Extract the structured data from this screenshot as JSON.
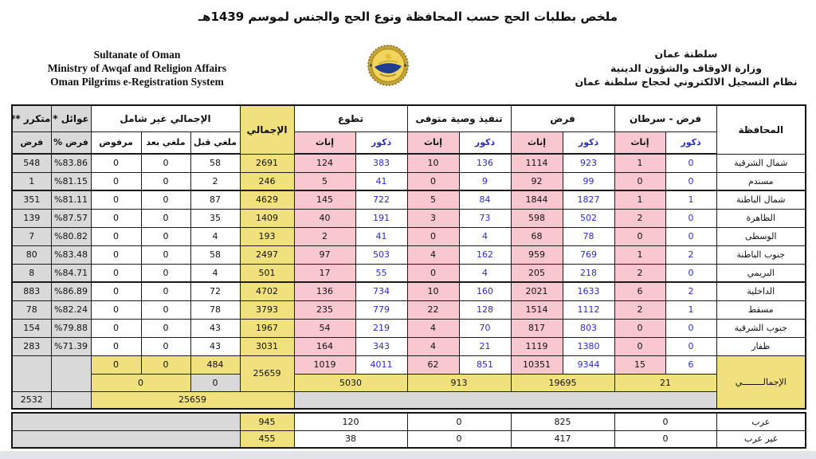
{
  "page": {
    "title": "ملخص بطلبات الحج حسب المحافظة ونوع الحج والجنس لموسم 1439هـ"
  },
  "letterhead": {
    "english": {
      "line1": "Sultanate of Oman",
      "line2": "Ministry of Awqaf and Religion Affairs",
      "line3": "Oman Pilgrims e-Registration System"
    },
    "arabic": {
      "line1": "سلطنة عمان",
      "line2": "وزارة الاوقاف والشؤون الدينية",
      "line3": "نظام التسجيل الالكتروني لحجاج سلطنة عمان"
    },
    "logo_icon": "ministry-seal-icon"
  },
  "colors": {
    "female_bg": "#f8c7d0",
    "male_text": "#2b2bc8",
    "total_bg": "#f1e17d",
    "muted_bg": "#d9d9d9",
    "border": "#1b1b1b"
  },
  "table": {
    "headers": {
      "governorate": "المحافظة",
      "groups": [
        {
          "key": "cancer",
          "label": "فرض - سرطان",
          "male": "ذكور",
          "female": "إناث"
        },
        {
          "key": "fard",
          "label": "فرض",
          "male": "ذكور",
          "female": "إناث"
        },
        {
          "key": "will",
          "label": "تنفيذ وصية متوفى",
          "male": "ذكور",
          "female": "إناث"
        },
        {
          "key": "vol",
          "label": "تطوع",
          "male": "ذكور",
          "female": "إناث"
        }
      ],
      "total": "الإجمالي",
      "excluded_group": "الإجمالي غير شامل",
      "excluded": {
        "cancel_before": "ملغي قبل",
        "cancel_after": "ملغي بعد",
        "rejected": "مرفوض"
      },
      "families": {
        "top": "عوائل *",
        "bottom": "فرض %"
      },
      "repeated": {
        "top": "متكرر **",
        "bottom": "فرض"
      }
    },
    "rows": [
      {
        "gov": "شمال الشرقية",
        "cancer_m": 0,
        "cancer_f": 1,
        "fard_m": 923,
        "fard_f": 1114,
        "will_m": 136,
        "will_f": 10,
        "vol_m": 383,
        "vol_f": 124,
        "total": 2691,
        "cancel_before": 58,
        "cancel_after": 0,
        "rejected": 0,
        "families_pct": "%83.86",
        "repeat_fard": 548
      },
      {
        "gov": "مسندم",
        "cancer_m": 0,
        "cancer_f": 0,
        "fard_m": 99,
        "fard_f": 92,
        "will_m": 9,
        "will_f": 0,
        "vol_m": 41,
        "vol_f": 5,
        "total": 246,
        "cancel_before": 2,
        "cancel_after": 0,
        "rejected": 0,
        "families_pct": "%81.15",
        "repeat_fard": 1
      },
      {
        "gov": "شمال الباطنة",
        "cancer_m": 1,
        "cancer_f": 1,
        "fard_m": 1827,
        "fard_f": 1844,
        "will_m": 84,
        "will_f": 5,
        "vol_m": 722,
        "vol_f": 145,
        "total": 4629,
        "cancel_before": 87,
        "cancel_after": 0,
        "rejected": 0,
        "families_pct": "%81.11",
        "repeat_fard": 351
      },
      {
        "gov": "الظاهرة",
        "cancer_m": 0,
        "cancer_f": 2,
        "fard_m": 502,
        "fard_f": 598,
        "will_m": 73,
        "will_f": 3,
        "vol_m": 191,
        "vol_f": 40,
        "total": 1409,
        "cancel_before": 35,
        "cancel_after": 0,
        "rejected": 0,
        "families_pct": "%87.57",
        "repeat_fard": 139
      },
      {
        "gov": "الوسطى",
        "cancer_m": 0,
        "cancer_f": 0,
        "fard_m": 78,
        "fard_f": 68,
        "will_m": 4,
        "will_f": 0,
        "vol_m": 41,
        "vol_f": 2,
        "total": 193,
        "cancel_before": 4,
        "cancel_after": 0,
        "rejected": 0,
        "families_pct": "%80.82",
        "repeat_fard": 7
      },
      {
        "gov": "جنوب الباطنة",
        "cancer_m": 2,
        "cancer_f": 1,
        "fard_m": 769,
        "fard_f": 959,
        "will_m": 162,
        "will_f": 4,
        "vol_m": 503,
        "vol_f": 97,
        "total": 2497,
        "cancel_before": 58,
        "cancel_after": 0,
        "rejected": 0,
        "families_pct": "%83.48",
        "repeat_fard": 80
      },
      {
        "gov": "البريمي",
        "cancer_m": 0,
        "cancer_f": 2,
        "fard_m": 218,
        "fard_f": 205,
        "will_m": 4,
        "will_f": 0,
        "vol_m": 55,
        "vol_f": 17,
        "total": 501,
        "cancel_before": 4,
        "cancel_after": 0,
        "rejected": 0,
        "families_pct": "%84.71",
        "repeat_fard": 8
      },
      {
        "gov": "الداخلية",
        "cancer_m": 2,
        "cancer_f": 6,
        "fard_m": 1633,
        "fard_f": 2021,
        "will_m": 160,
        "will_f": 10,
        "vol_m": 734,
        "vol_f": 136,
        "total": 4702,
        "cancel_before": 72,
        "cancel_after": 0,
        "rejected": 0,
        "families_pct": "%86.89",
        "repeat_fard": 883
      },
      {
        "gov": "مسقط",
        "cancer_m": 1,
        "cancer_f": 2,
        "fard_m": 1112,
        "fard_f": 1514,
        "will_m": 128,
        "will_f": 22,
        "vol_m": 779,
        "vol_f": 235,
        "total": 3793,
        "cancel_before": 78,
        "cancel_after": 0,
        "rejected": 0,
        "families_pct": "%82.24",
        "repeat_fard": 78
      },
      {
        "gov": "جنوب الشرقية",
        "cancer_m": 0,
        "cancer_f": 0,
        "fard_m": 803,
        "fard_f": 817,
        "will_m": 70,
        "will_f": 4,
        "vol_m": 219,
        "vol_f": 54,
        "total": 1967,
        "cancel_before": 43,
        "cancel_after": 0,
        "rejected": 0,
        "families_pct": "%79.88",
        "repeat_fard": 154
      },
      {
        "gov": "ظفار",
        "cancer_m": 0,
        "cancer_f": 0,
        "fard_m": 1380,
        "fard_f": 1119,
        "will_m": 21,
        "will_f": 4,
        "vol_m": 343,
        "vol_f": 164,
        "total": 3031,
        "cancel_before": 43,
        "cancel_after": 0,
        "rejected": 0,
        "families_pct": "%71.39",
        "repeat_fard": 283
      }
    ],
    "totals": {
      "label": "الإجمالــــــــي",
      "cancer_m": 6,
      "cancer_f": 15,
      "fard_m": 9344,
      "fard_f": 10351,
      "will_m": 851,
      "will_f": 62,
      "vol_m": 4011,
      "vol_f": 1019,
      "cancer": 21,
      "fard": 19695,
      "will": 913,
      "vol": 5030,
      "grand": 25659,
      "cancel_before": 484,
      "cancel_after": 0,
      "rejected": 0,
      "cancel_before_b": 0,
      "cancel_after_rejected": 0,
      "grand_b": 25659,
      "repeated": 2532
    },
    "nationality_rows": [
      {
        "label": "عرب",
        "total": 945,
        "vol": 120,
        "will": 0,
        "fard": 825,
        "cancer": 0
      },
      {
        "label": "غير عرب",
        "total": 455,
        "vol": 38,
        "will": 0,
        "fard": 417,
        "cancer": 0
      }
    ]
  }
}
